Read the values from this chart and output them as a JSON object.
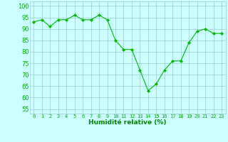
{
  "x": [
    0,
    1,
    2,
    3,
    4,
    5,
    6,
    7,
    8,
    9,
    10,
    11,
    12,
    13,
    14,
    15,
    16,
    17,
    18,
    19,
    20,
    21,
    22,
    23
  ],
  "y": [
    93,
    94,
    91,
    94,
    94,
    96,
    94,
    94,
    96,
    94,
    85,
    81,
    81,
    72,
    63,
    66,
    72,
    76,
    76,
    84,
    89,
    90,
    88,
    88
  ],
  "line_color": "#00bb00",
  "marker": "D",
  "marker_size": 2.0,
  "bg_color": "#ccffff",
  "grid_color": "#99cccc",
  "xlabel": "Humidité relative (%)",
  "xlabel_color": "#008800",
  "xlabel_fontsize": 6.5,
  "tick_color": "#00aa00",
  "xtick_fontsize": 5.0,
  "ytick_fontsize": 6.0,
  "ytick_labels": [
    "55",
    "60",
    "65",
    "70",
    "75",
    "80",
    "85",
    "90",
    "95",
    "100"
  ],
  "ylim": [
    53,
    102
  ],
  "xlim": [
    -0.5,
    23.5
  ],
  "yticks": [
    55,
    60,
    65,
    70,
    75,
    80,
    85,
    90,
    95,
    100
  ]
}
